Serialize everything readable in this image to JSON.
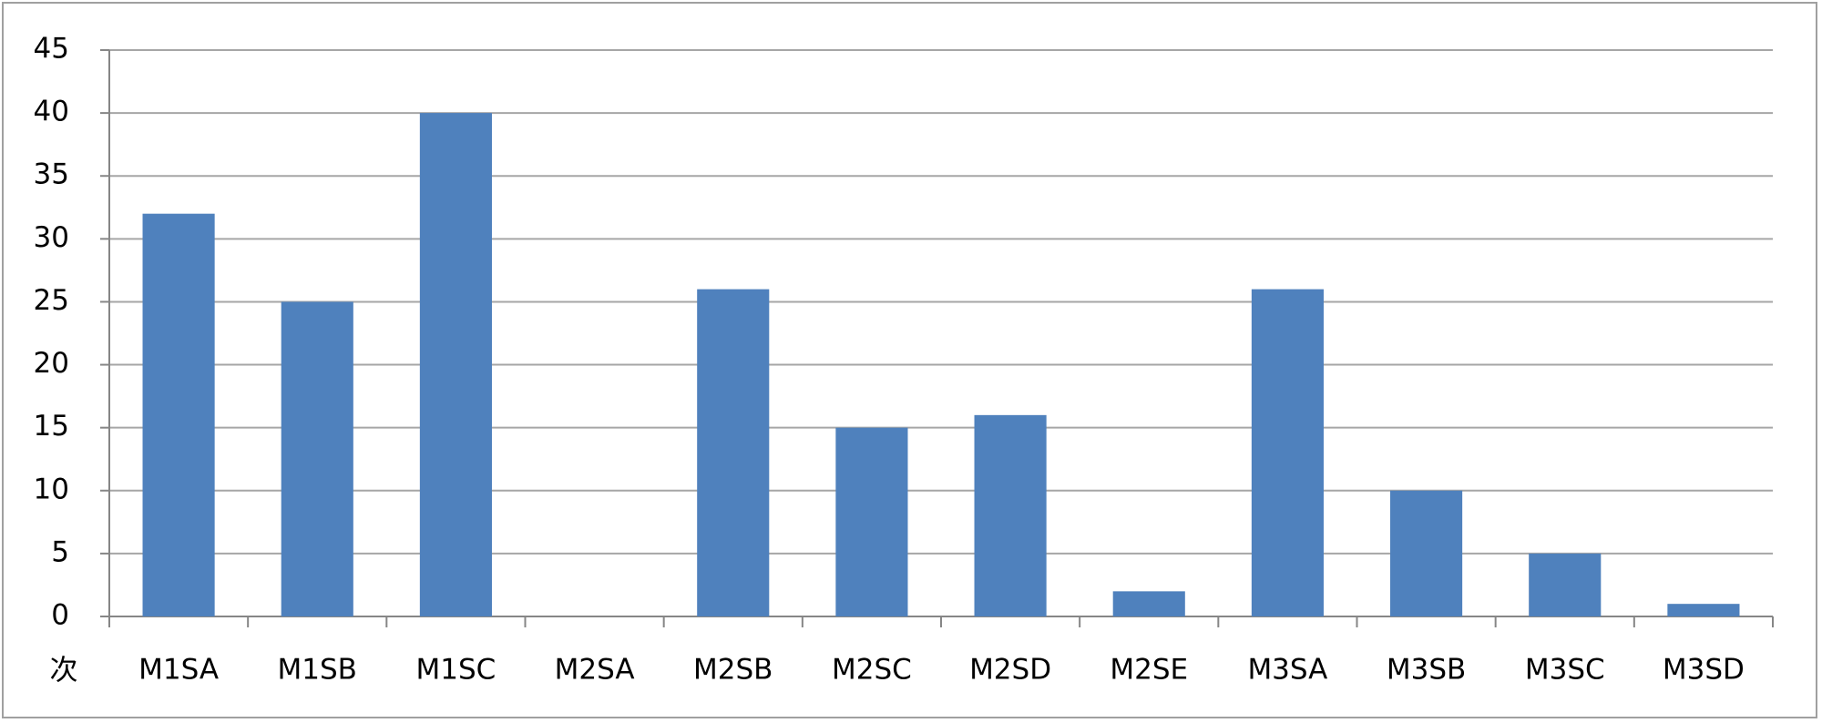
{
  "chart_data": {
    "type": "bar",
    "y_label": "次",
    "categories": [
      "M1SA",
      "M1SB",
      "M1SC",
      "M2SA",
      "M2SB",
      "M2SC",
      "M2SD",
      "M2SE",
      "M3SA",
      "M3SB",
      "M3SC",
      "M3SD"
    ],
    "values": [
      32,
      25,
      40,
      0,
      26,
      15,
      16,
      2,
      26,
      10,
      5,
      1
    ],
    "color": "#4f81bd",
    "ylim": [
      0,
      45
    ],
    "yticks": [
      0,
      5,
      10,
      15,
      20,
      25,
      30,
      35,
      40,
      45
    ],
    "grid": true
  }
}
